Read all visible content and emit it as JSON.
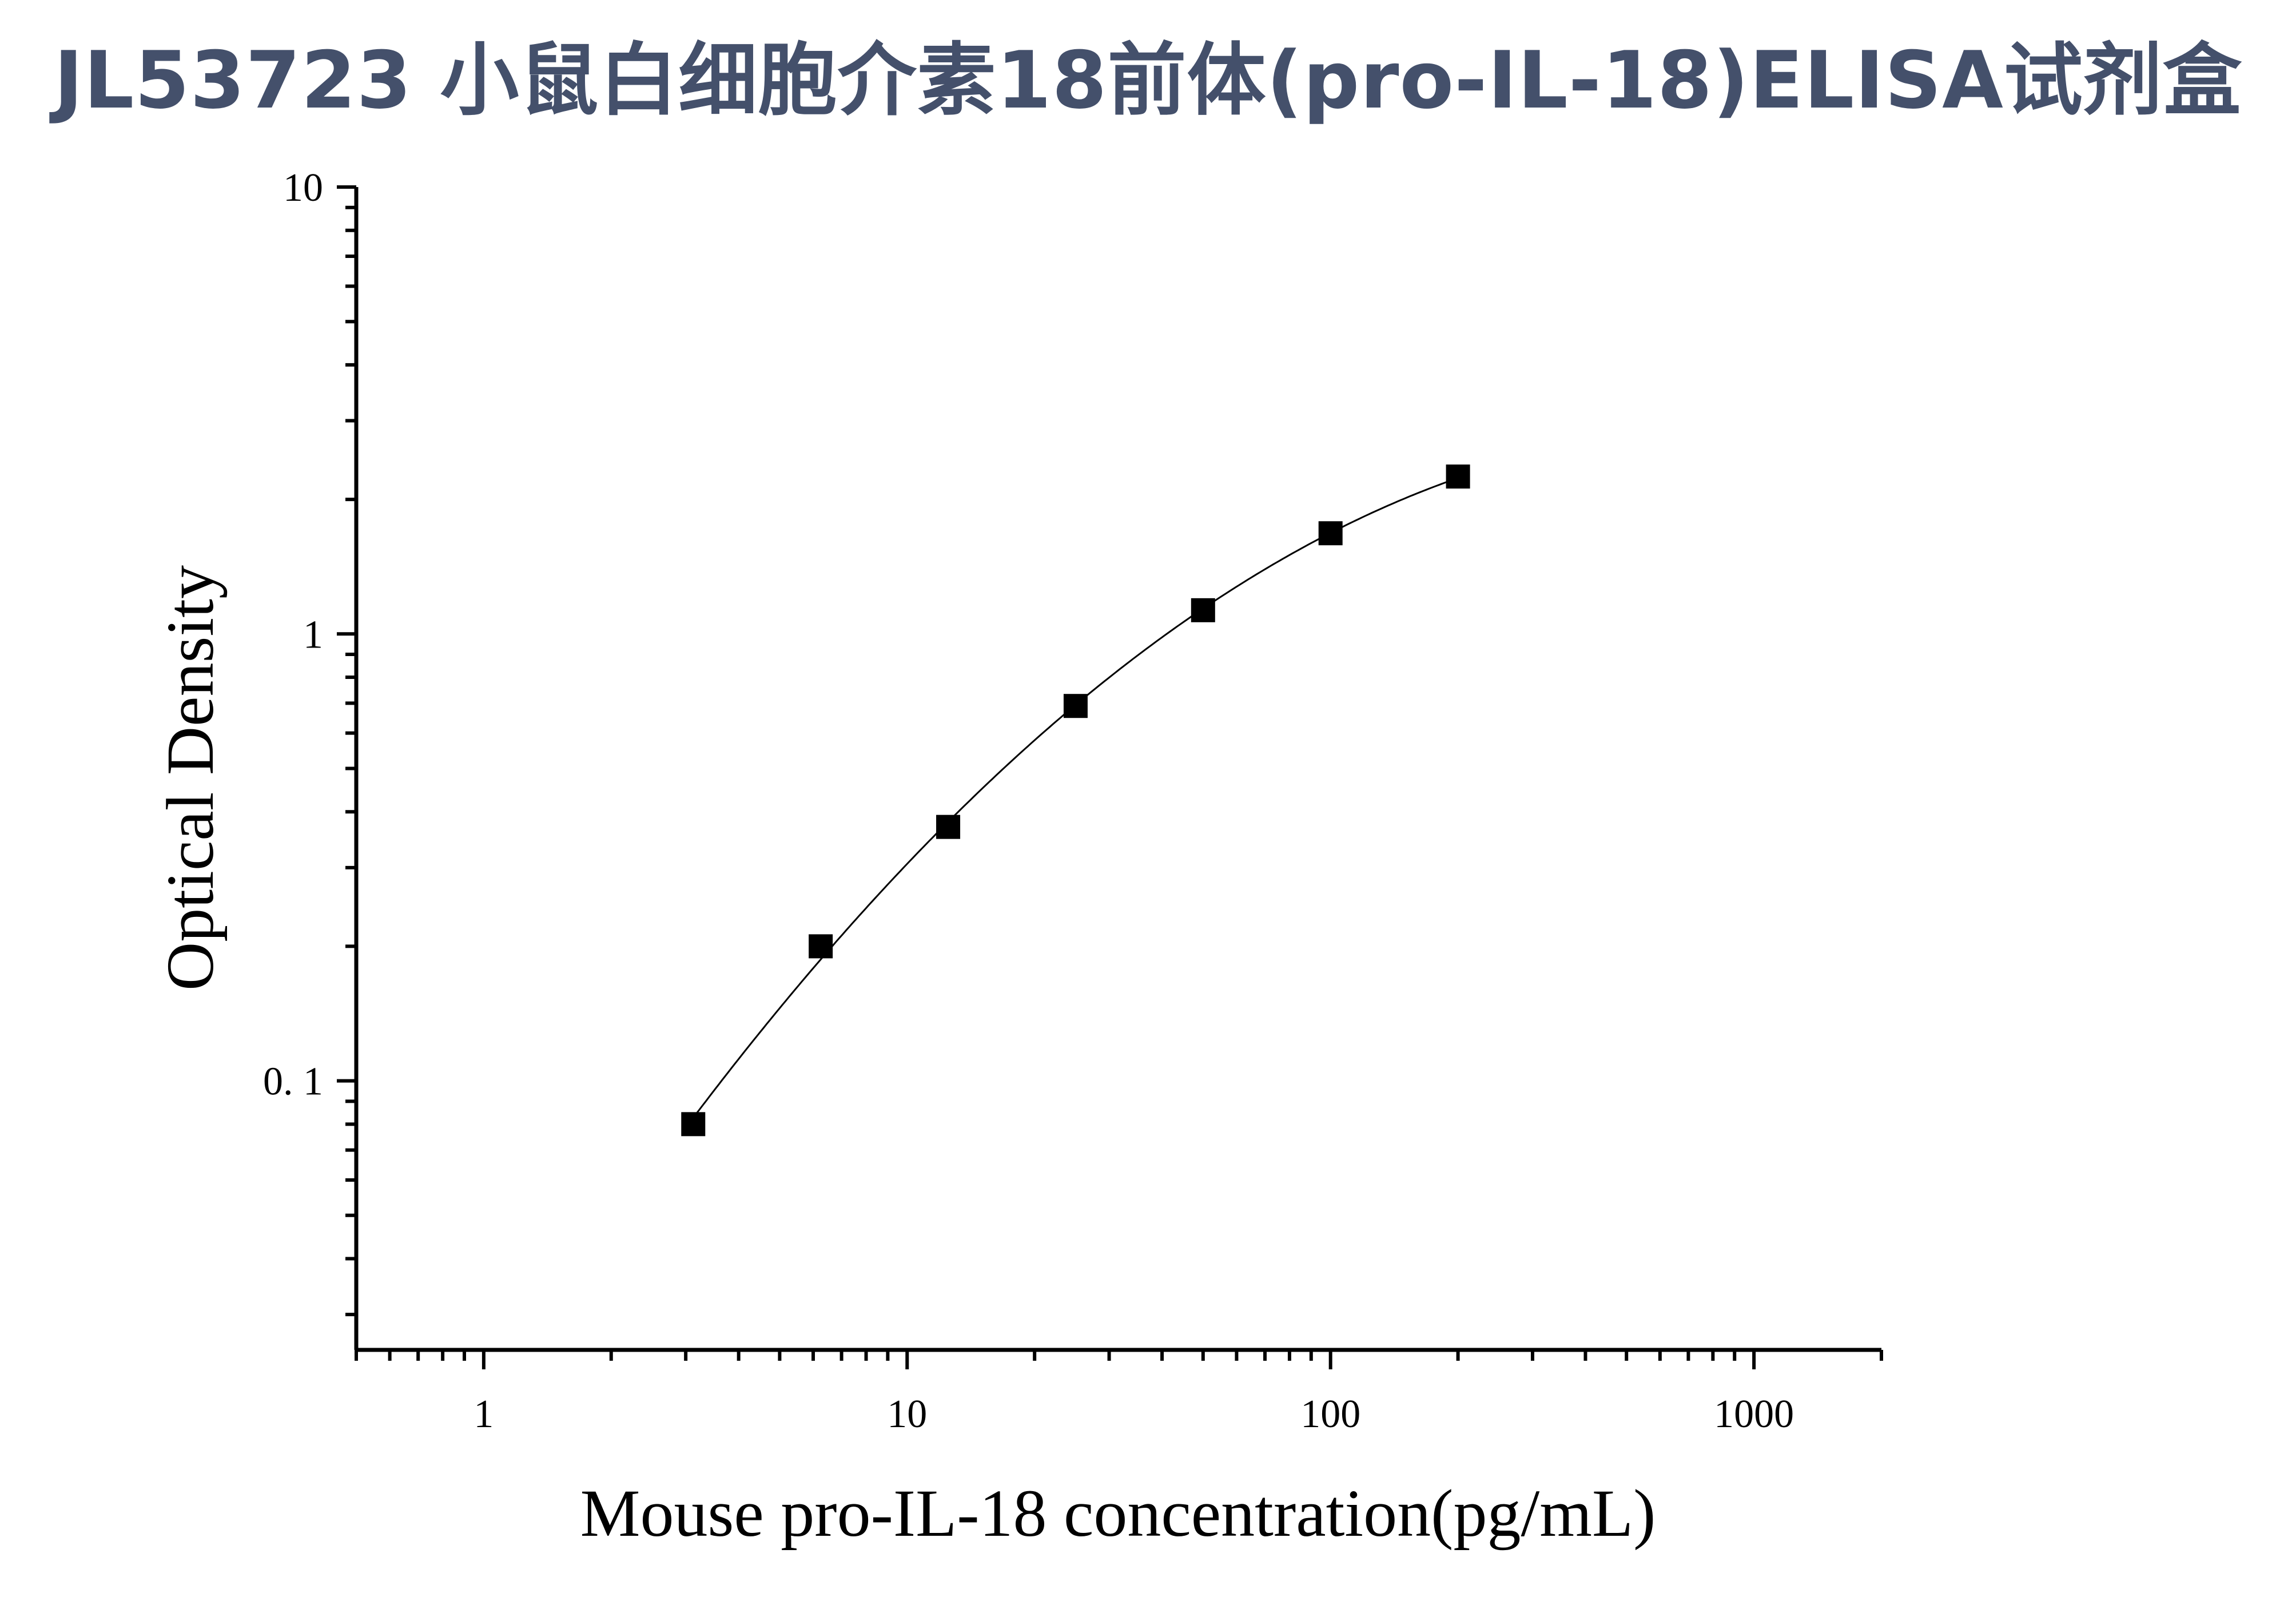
{
  "chart_data": {
    "type": "scatter",
    "title": "JL53723 小鼠白细胞介素18前体(pro-IL-18)ELISA试剂盒",
    "xlabel": "Mouse pro-IL-18 concentration(pg/mL)",
    "ylabel": "Optical Density",
    "xscale": "log",
    "yscale": "log",
    "xlim": [
      0.5,
      2000
    ],
    "ylim": [
      0.025,
      10
    ],
    "x_ticks": [
      {
        "value": 1,
        "label": "1"
      },
      {
        "value": 10,
        "label": "10"
      },
      {
        "value": 100,
        "label": "100"
      },
      {
        "value": 1000,
        "label": "1000"
      }
    ],
    "y_ticks": [
      {
        "value": 0.1,
        "label": "0. 1"
      },
      {
        "value": 1,
        "label": "1"
      },
      {
        "value": 10,
        "label": "10"
      }
    ],
    "grid": false,
    "legend": "none",
    "series": [
      {
        "marker": "square",
        "fit_line": true,
        "x": [
          3.125,
          6.25,
          12.5,
          25,
          50,
          100,
          200
        ],
        "y": [
          0.08,
          0.2,
          0.37,
          0.69,
          1.13,
          1.68,
          2.25
        ]
      }
    ]
  },
  "colors": {
    "title": "#44506b",
    "axis": "#000000",
    "marker": "#000000",
    "fit_line": "#000000"
  }
}
